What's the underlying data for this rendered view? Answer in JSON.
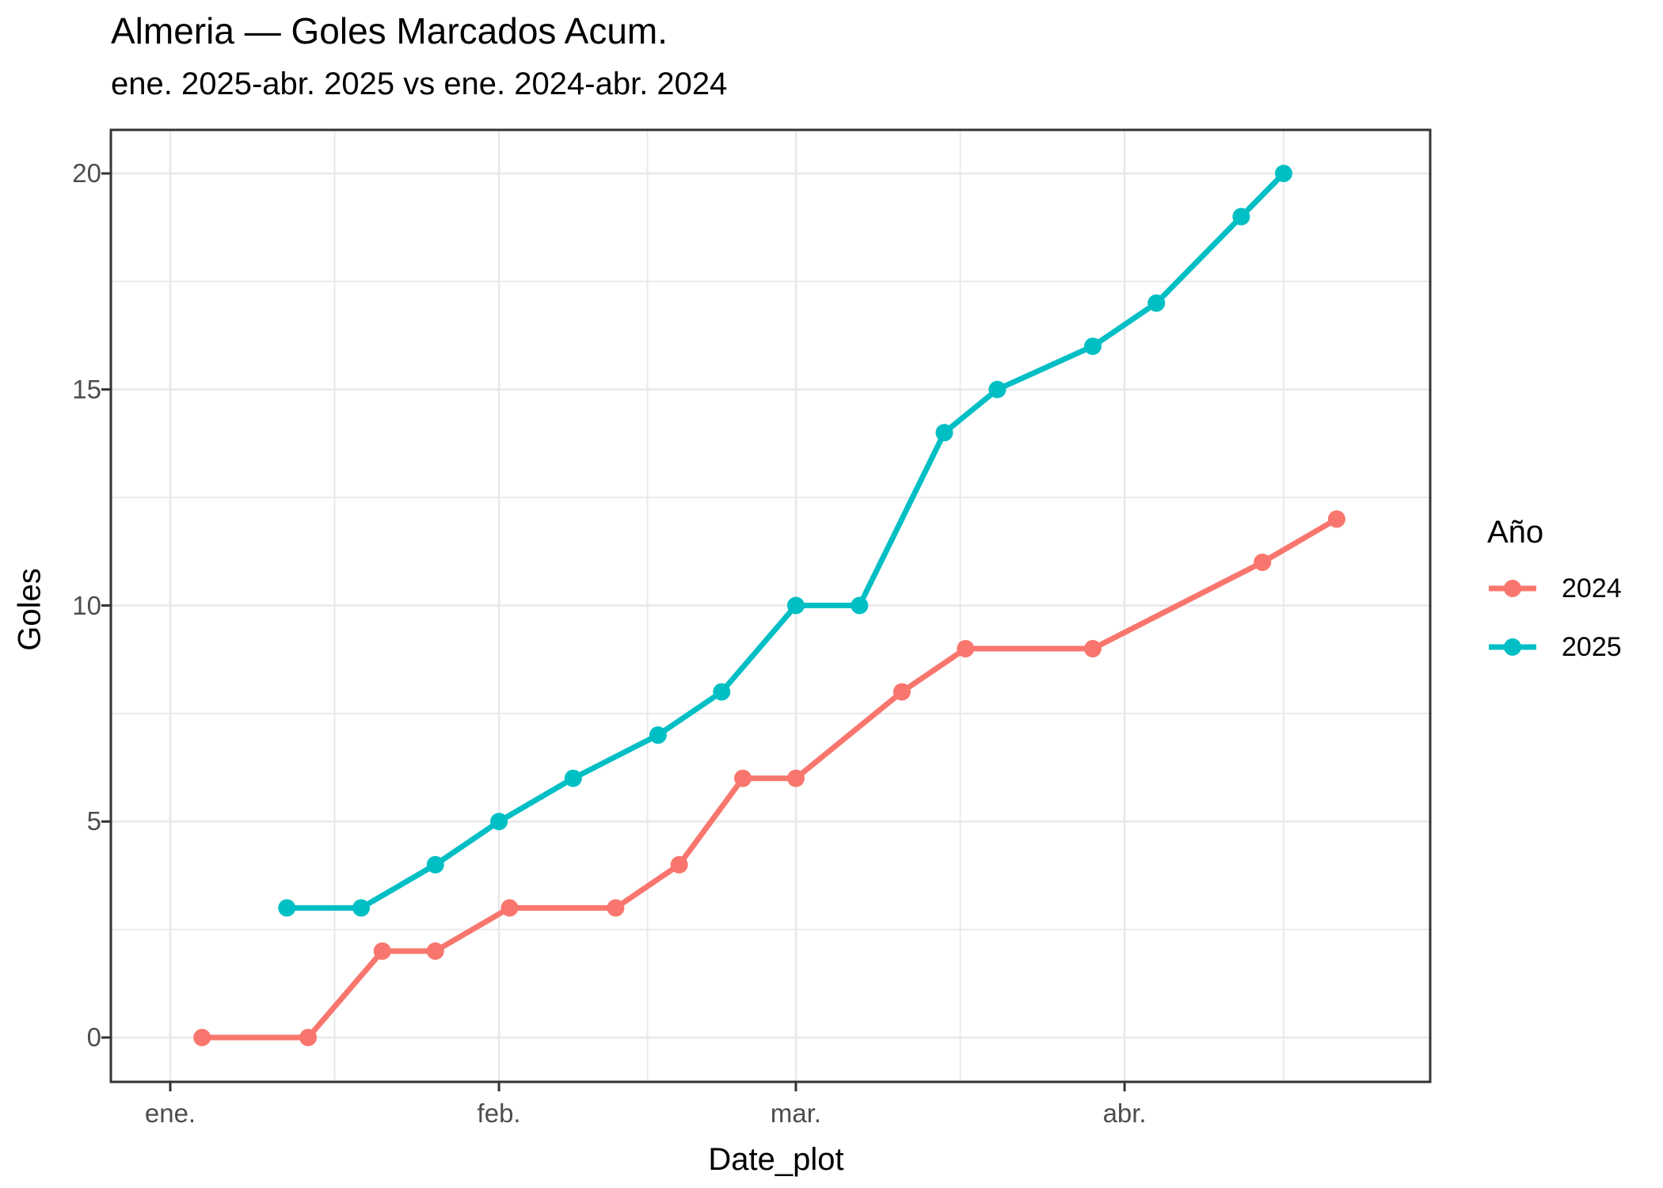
{
  "header": {
    "title": "Almeria — Goles Marcados Acum.",
    "subtitle": "ene. 2025-abr. 2025 vs ene. 2024-abr. 2024"
  },
  "legend": {
    "title": "Año",
    "entries": [
      {
        "label": "2024",
        "color": "#F8766D"
      },
      {
        "label": "2025",
        "color": "#00BFC4"
      }
    ]
  },
  "chart_data": {
    "type": "line",
    "title": "Almeria — Goles Marcados Acum.",
    "subtitle": "ene. 2025-abr. 2025 vs ene. 2024-abr. 2024",
    "xlabel": "Date_plot",
    "ylabel": "Goles",
    "legend_title": "Año",
    "legend_position": "right",
    "grid": true,
    "x_axis": {
      "tick_labels": [
        "ene.",
        "feb.",
        "mar.",
        "abr."
      ],
      "tick_days_from_jan1": [
        0,
        31,
        59,
        90
      ],
      "minor_days_from_jan1": [
        15.5,
        45,
        74.5,
        105
      ],
      "range_days": [
        -5.6,
        118.8
      ]
    },
    "y_axis": {
      "ticks": [
        0,
        5,
        10,
        15,
        20
      ],
      "minor_ticks": [
        2.5,
        7.5,
        12.5,
        17.5
      ],
      "range": [
        -1.05,
        21.0
      ]
    },
    "series": [
      {
        "name": "2024",
        "color": "#F8766D",
        "points": [
          {
            "day": 3,
            "goles": 0
          },
          {
            "day": 13,
            "goles": 0
          },
          {
            "day": 20,
            "goles": 2
          },
          {
            "day": 25,
            "goles": 2
          },
          {
            "day": 32,
            "goles": 3
          },
          {
            "day": 42,
            "goles": 3
          },
          {
            "day": 48,
            "goles": 4
          },
          {
            "day": 54,
            "goles": 6
          },
          {
            "day": 59,
            "goles": 6
          },
          {
            "day": 69,
            "goles": 8
          },
          {
            "day": 75,
            "goles": 9
          },
          {
            "day": 87,
            "goles": 9
          },
          {
            "day": 103,
            "goles": 11
          },
          {
            "day": 110,
            "goles": 12
          }
        ]
      },
      {
        "name": "2025",
        "color": "#00BFC4",
        "points": [
          {
            "day": 11,
            "goles": 3
          },
          {
            "day": 18,
            "goles": 3
          },
          {
            "day": 25,
            "goles": 4
          },
          {
            "day": 31,
            "goles": 5
          },
          {
            "day": 38,
            "goles": 6
          },
          {
            "day": 46,
            "goles": 7
          },
          {
            "day": 52,
            "goles": 8
          },
          {
            "day": 59,
            "goles": 10
          },
          {
            "day": 65,
            "goles": 10
          },
          {
            "day": 73,
            "goles": 14
          },
          {
            "day": 78,
            "goles": 15
          },
          {
            "day": 87,
            "goles": 16
          },
          {
            "day": 93,
            "goles": 17
          },
          {
            "day": 101,
            "goles": 19
          },
          {
            "day": 105,
            "goles": 20
          }
        ]
      }
    ],
    "style": {
      "panel_border_color": "#333333",
      "grid_color": "#E8E8E8",
      "tick_label_color": "#4d4d4d",
      "line_width": 7,
      "point_radius": 11
    }
  }
}
